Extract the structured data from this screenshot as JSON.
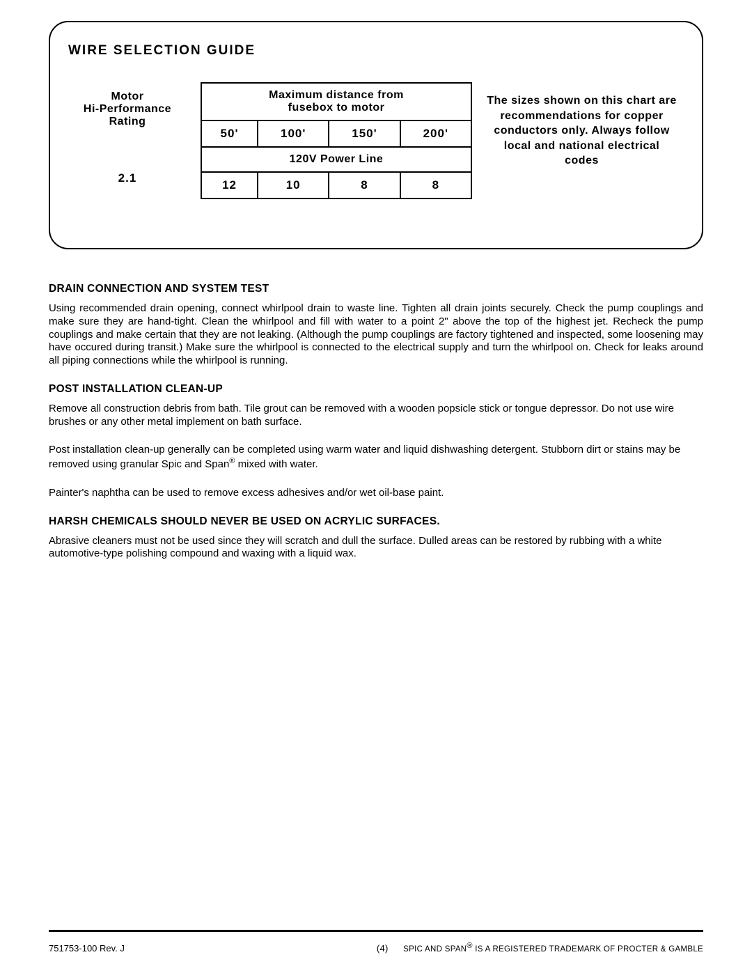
{
  "guide": {
    "title": "WIRE SELECTION GUIDE",
    "motor_label": "Motor\nHi-Performance\nRating",
    "motor_label_l1": "Motor",
    "motor_label_l2": "Hi-Performance",
    "motor_label_l3": "Rating",
    "rating_value": "2.1",
    "table_header": "Maximum distance from fusebox to motor",
    "table_header_l1": "Maximum distance from",
    "table_header_l2": "fusebox to motor",
    "distances": [
      "50'",
      "100'",
      "150'",
      "200'"
    ],
    "powerline_label": "120V Power Line",
    "gauges": [
      "12",
      "10",
      "8",
      "8"
    ],
    "note": "The sizes shown on this chart are recommendations for copper conductors only.  Always follow local and national electrical codes"
  },
  "sections": {
    "drain_heading": "DRAIN CONNECTION AND SYSTEM TEST",
    "drain_body": "Using recommended drain opening, connect whirlpool drain to waste line.  Tighten all drain joints securely.  Check the pump couplings and make sure they are hand-tight.  Clean the whirlpool and fill with water to a point 2\" above the top of the highest jet.  Recheck the pump couplings and make certain that they are not leaking.  (Although the pump couplings are factory tightened and inspected, some loosening may have occured during transit.)  Make sure the whirlpool is connected to the electrical supply and turn the whirlpool on.  Check for leaks around all piping connections while the whirlpool is running.",
    "post_heading": "POST INSTALLATION CLEAN-UP",
    "post_body1": "Remove all construction debris from bath.  Tile grout can be removed with a wooden popsicle stick or tongue depressor.  Do not use wire brushes or any other metal implement on bath surface.",
    "post_body2a": "Post installation clean-up generally can be completed using warm water and liquid dishwashing detergent.  Stubborn dirt or stains may be removed using granular Spic and Span",
    "post_body2b": " mixed with water.",
    "post_body3": "Painter's naphtha can be used to remove excess adhesives and/or wet oil-base paint.",
    "harsh_heading": "HARSH CHEMICALS SHOULD NEVER BE USED ON ACRYLIC SURFACES.",
    "harsh_body": "Abrasive cleaners must not be used since they will scratch and dull the surface.  Dulled areas can be restored by rubbing with a white automotive-type polishing compound and waxing with a liquid wax."
  },
  "footer": {
    "left": "751753-100 Rev. J",
    "page": "(4)",
    "right_a": "SPIC AND SPAN",
    "right_b": " IS A REGISTERED TRADEMARK OF PROCTER & GAMBLE",
    "reg": "®"
  }
}
